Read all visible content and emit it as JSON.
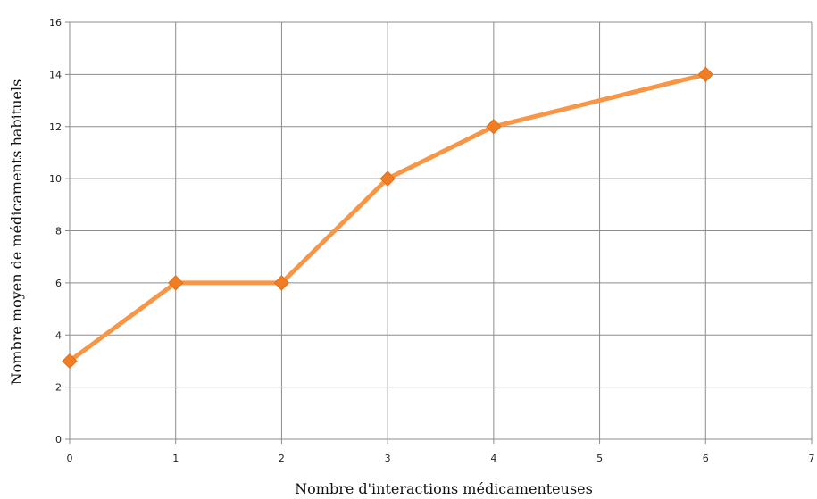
{
  "chart_data": {
    "type": "line",
    "title": "",
    "xlabel": "Nombre d'interactions médicamenteuses",
    "ylabel": "Nombre moyen de médicaments habituels",
    "xlim": [
      0,
      7
    ],
    "ylim": [
      0,
      16
    ],
    "xticks": [
      0,
      1,
      2,
      3,
      4,
      5,
      6,
      7
    ],
    "yticks": [
      0,
      2,
      4,
      6,
      8,
      10,
      12,
      14,
      16
    ],
    "grid": true,
    "legend": "none",
    "series": [
      {
        "x": [
          0,
          1,
          2,
          3,
          4,
          6
        ],
        "y": [
          3,
          6,
          6,
          10,
          12,
          14
        ],
        "color": "#F79646",
        "marker": "diamond"
      }
    ]
  }
}
